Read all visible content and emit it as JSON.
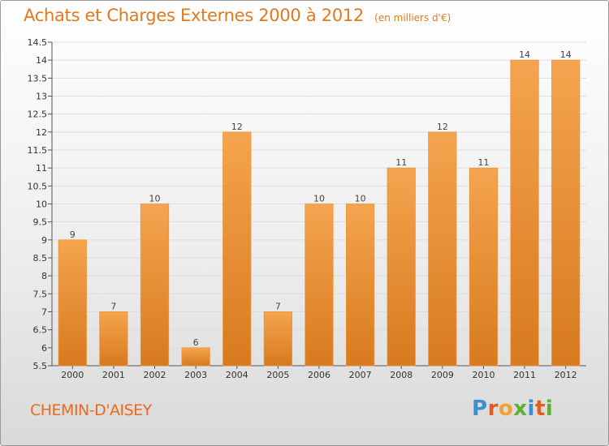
{
  "header": {
    "title": "Achats et Charges Externes 2000 à 2012",
    "unit": "(en milliers d'€)"
  },
  "footer": {
    "commune": "CHEMIN-D'AISEY",
    "brand": "Proxiti"
  },
  "colors": {
    "accent": "#e07a1e",
    "bar_top": "#f5a44f",
    "bar_bottom": "#d87a1e",
    "brand_letters": [
      "#3a8fd0",
      "#e85a1f",
      "#f2a12a",
      "#5ab031",
      "#3a8fd0",
      "#e85a1f",
      "#5ab031"
    ]
  },
  "chart_data": {
    "type": "bar",
    "title": "Achats et Charges Externes 2000 à 2012",
    "xlabel": "",
    "ylabel": "",
    "categories": [
      "2000",
      "2001",
      "2002",
      "2003",
      "2004",
      "2005",
      "2006",
      "2007",
      "2008",
      "2009",
      "2010",
      "2011",
      "2012"
    ],
    "values": [
      9,
      7,
      10,
      6,
      12,
      7,
      10,
      10,
      11,
      12,
      11,
      14,
      14
    ],
    "data_labels": [
      "9",
      "7",
      "10",
      "6",
      "12",
      "7",
      "10",
      "10",
      "11",
      "12",
      "11",
      "14",
      "14"
    ],
    "ylim": [
      5.5,
      14.5
    ],
    "yticks": [
      "5.5",
      "6",
      "6.5",
      "7",
      "7.5",
      "8",
      "8.5",
      "9",
      "9.5",
      "10",
      "10.5",
      "11",
      "11.5",
      "12",
      "12.5",
      "13",
      "13.5",
      "14",
      "14.5"
    ],
    "grid": true
  }
}
